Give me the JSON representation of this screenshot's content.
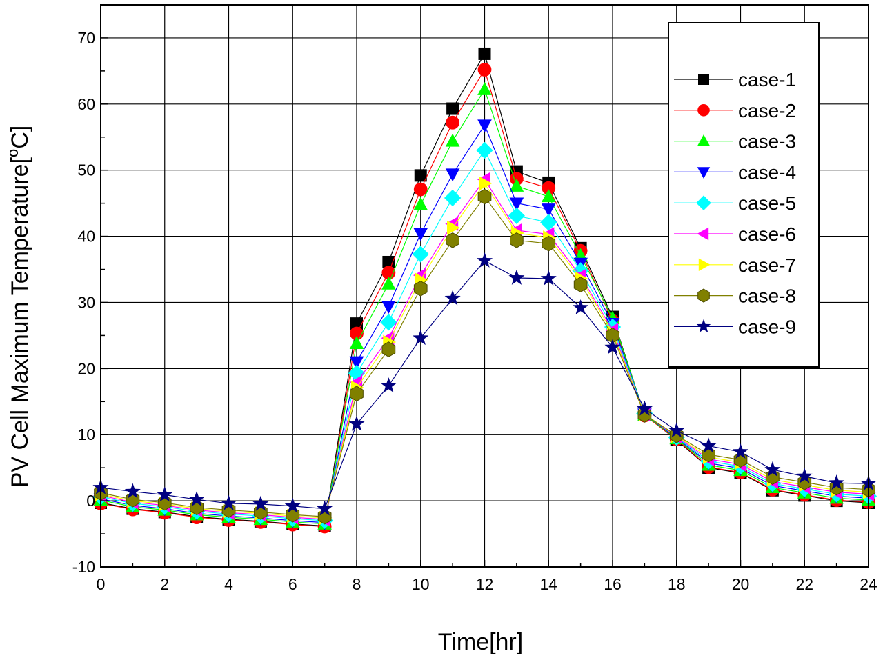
{
  "chart_data": {
    "type": "line",
    "title": "",
    "xlabel": "Time[hr]",
    "ylabel_main": "PV Cell Maximum Temperature[",
    "ylabel_sup": "o",
    "ylabel_end": "C]",
    "xlim": [
      0,
      24
    ],
    "ylim": [
      -10,
      75
    ],
    "xticks": [
      0,
      2,
      4,
      6,
      8,
      10,
      12,
      14,
      16,
      18,
      20,
      22,
      24
    ],
    "yticks": [
      -10,
      0,
      10,
      20,
      30,
      40,
      50,
      60,
      70
    ],
    "grid": true,
    "legend_position": "top-right",
    "x": [
      0,
      1,
      2,
      3,
      4,
      5,
      6,
      7,
      8,
      9,
      10,
      11,
      12,
      13,
      14,
      15,
      16,
      17,
      18,
      19,
      20,
      21,
      22,
      23,
      24
    ],
    "series": [
      {
        "name": "case-1",
        "color": "#000000",
        "marker": "square",
        "values": [
          -0.3,
          -1.2,
          -1.7,
          -2.4,
          -2.8,
          -3.1,
          -3.5,
          -3.8,
          26.8,
          36.1,
          49.2,
          59.3,
          67.6,
          49.8,
          48.1,
          38.2,
          27.8,
          13.0,
          9.2,
          5.0,
          4.2,
          1.6,
          0.8,
          0.0,
          -0.3
        ]
      },
      {
        "name": "case-2",
        "color": "#ff0000",
        "marker": "circle",
        "values": [
          -0.4,
          -1.3,
          -1.8,
          -2.5,
          -2.9,
          -3.2,
          -3.6,
          -3.9,
          25.3,
          34.5,
          47.1,
          57.2,
          65.2,
          48.7,
          47.3,
          37.8,
          27.2,
          12.9,
          9.3,
          5.1,
          4.3,
          1.7,
          0.9,
          0.1,
          -0.2
        ]
      },
      {
        "name": "case-3",
        "color": "#00ff00",
        "marker": "triangle-up",
        "values": [
          0.1,
          -0.9,
          -1.4,
          -2.1,
          -2.5,
          -2.8,
          -3.2,
          -3.5,
          23.8,
          32.8,
          44.8,
          54.4,
          62.2,
          47.6,
          46.0,
          37.1,
          27.6,
          13.0,
          9.4,
          5.4,
          4.6,
          2.0,
          1.2,
          0.4,
          0.1
        ]
      },
      {
        "name": "case-4",
        "color": "#0000ff",
        "marker": "triangle-down",
        "values": [
          0.3,
          -0.7,
          -1.2,
          -1.9,
          -2.3,
          -2.6,
          -3.0,
          -3.3,
          21.0,
          29.4,
          40.4,
          49.4,
          56.8,
          45.0,
          44.1,
          35.9,
          26.8,
          13.1,
          9.5,
          5.7,
          4.9,
          2.3,
          1.5,
          0.7,
          0.4
        ]
      },
      {
        "name": "case-5",
        "color": "#00ffff",
        "marker": "diamond",
        "values": [
          0.6,
          -0.4,
          -0.9,
          -1.6,
          -2.0,
          -2.3,
          -2.7,
          -3.0,
          19.3,
          27.0,
          37.3,
          45.8,
          53.0,
          43.1,
          42.1,
          34.8,
          26.3,
          13.2,
          9.6,
          6.0,
          5.2,
          2.6,
          1.8,
          1.0,
          0.7
        ]
      },
      {
        "name": "case-6",
        "color": "#ff00ff",
        "marker": "triangle-left",
        "values": [
          0.8,
          -0.2,
          -0.7,
          -1.4,
          -1.8,
          -2.1,
          -2.5,
          -2.8,
          17.9,
          24.6,
          34.1,
          41.9,
          48.6,
          40.9,
          40.3,
          34.0,
          25.8,
          13.1,
          9.7,
          6.3,
          5.5,
          2.9,
          2.1,
          1.3,
          1.0
        ]
      },
      {
        "name": "case-7",
        "color": "#ffff00",
        "marker": "triangle-right",
        "values": [
          1.0,
          0.0,
          -0.5,
          -1.2,
          -1.6,
          -1.9,
          -2.3,
          -2.6,
          17.1,
          24.0,
          33.4,
          41.3,
          48.0,
          40.5,
          39.8,
          33.6,
          25.4,
          13.1,
          9.8,
          6.6,
          5.8,
          3.2,
          2.4,
          1.6,
          1.3
        ]
      },
      {
        "name": "case-8",
        "color": "#808000",
        "marker": "hexagon",
        "values": [
          1.2,
          0.2,
          -0.3,
          -1.0,
          -1.4,
          -1.7,
          -2.1,
          -2.4,
          16.2,
          22.9,
          32.1,
          39.4,
          46.0,
          39.4,
          38.9,
          32.7,
          25.0,
          13.0,
          9.9,
          7.0,
          6.2,
          3.6,
          2.8,
          2.0,
          1.7
        ]
      },
      {
        "name": "case-9",
        "color": "#000080",
        "marker": "star",
        "values": [
          2.0,
          1.4,
          0.9,
          0.2,
          -0.4,
          -0.5,
          -0.8,
          -1.2,
          11.6,
          17.4,
          24.6,
          30.6,
          36.3,
          33.7,
          33.6,
          29.2,
          23.2,
          13.9,
          10.6,
          8.3,
          7.4,
          4.7,
          3.7,
          2.7,
          2.6
        ]
      }
    ]
  }
}
